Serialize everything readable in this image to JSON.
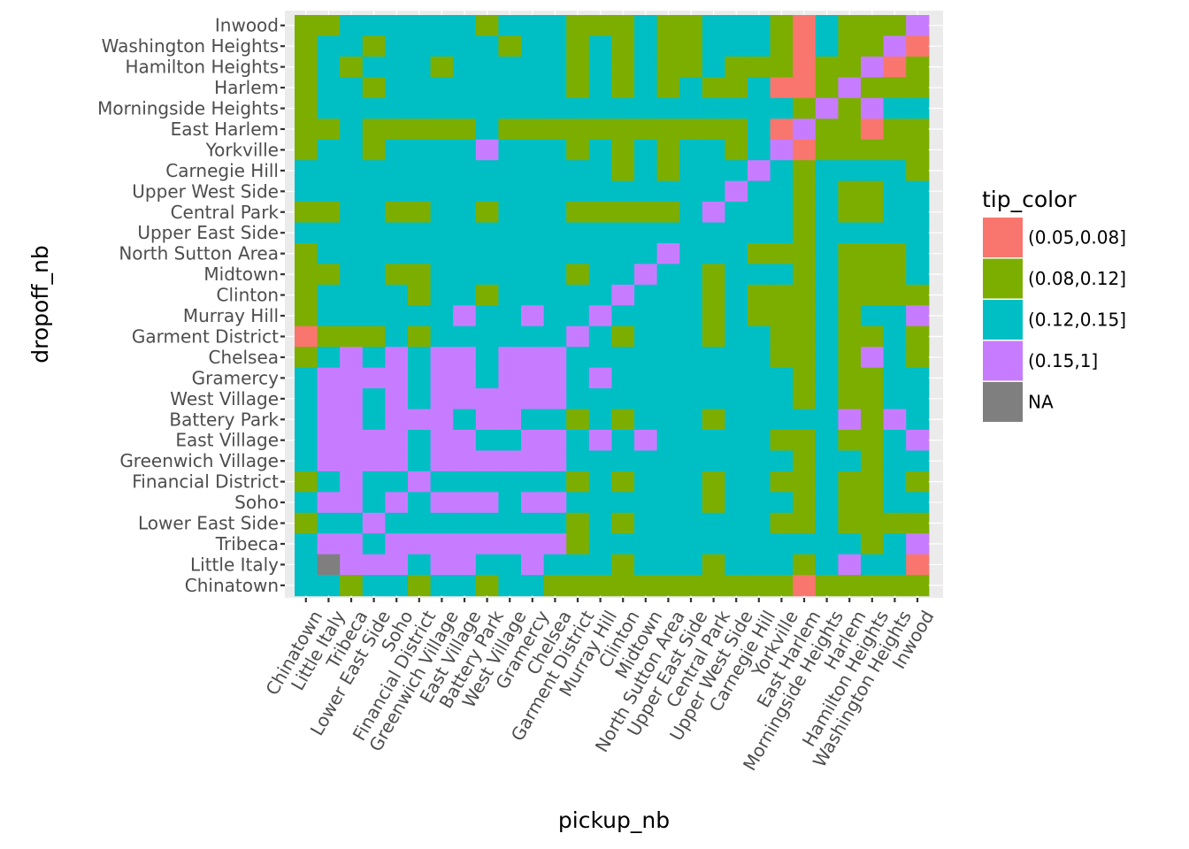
{
  "chart_data": {
    "type": "heatmap",
    "xlabel": "pickup_nb",
    "ylabel": "dropoff_nb",
    "x_categories": [
      "Chinatown",
      "Little Italy",
      "Tribeca",
      "Lower East Side",
      "Soho",
      "Financial District",
      "Greenwich Village",
      "East Village",
      "Battery Park",
      "West Village",
      "Gramercy",
      "Chelsea",
      "Garment District",
      "Murray Hill",
      "Clinton",
      "Midtown",
      "North Sutton Area",
      "Upper East Side",
      "Central Park",
      "Upper West Side",
      "Carnegie Hill",
      "Yorkville",
      "East Harlem",
      "Morningside Heights",
      "Harlem",
      "Hamilton Heights",
      "Washington Heights",
      "Inwood"
    ],
    "y_categories": [
      "Chinatown",
      "Little Italy",
      "Tribeca",
      "Lower East Side",
      "Soho",
      "Financial District",
      "Greenwich Village",
      "East Village",
      "Battery Park",
      "West Village",
      "Gramercy",
      "Chelsea",
      "Garment District",
      "Murray Hill",
      "Clinton",
      "Midtown",
      "North Sutton Area",
      "Upper East Side",
      "Central Park",
      "Upper West Side",
      "Carnegie Hill",
      "Yorkville",
      "East Harlem",
      "Morningside Heights",
      "Harlem",
      "Hamilton Heights",
      "Washington Heights",
      "Inwood"
    ],
    "legend": {
      "title": "tip_color",
      "placement": "right",
      "entries": [
        {
          "key": "A",
          "label": "(0.05,0.08]",
          "color": "#F8766D"
        },
        {
          "key": "B",
          "label": "(0.08,0.12]",
          "color": "#7CAE00"
        },
        {
          "key": "C",
          "label": "(0.12,0.15]",
          "color": "#00BFC4"
        },
        {
          "key": "D",
          "label": "(0.15,1]",
          "color": "#C77CFF"
        },
        {
          "key": "N",
          "label": "NA",
          "color": "#7F7F7F"
        }
      ]
    },
    "grid": true,
    "panel_background": "#EBEBEB",
    "rows_top_to_bottom": [
      {
        "dropoff": "Inwood",
        "cells": "BBCCCCCCBCCCBBBCBBCCCBACBBBD"
      },
      {
        "dropoff": "Washington Heights",
        "cells": "BCCBCCCCCBCCBCBCBBCCCBACBBDA"
      },
      {
        "dropoff": "Hamilton Heights",
        "cells": "BCBCCCBCCCCCBCBCBBCBBBABBDAB"
      },
      {
        "dropoff": "Harlem",
        "cells": "BCCBCCCCCCCCBCBCBCBBCAABDBBB"
      },
      {
        "dropoff": "Morningside Heights",
        "cells": "BCCCCCCCCCCCCCCCCCCCCCBDBDCC"
      },
      {
        "dropoff": "East Harlem",
        "cells": "BBCBBBBBCBBBBBBBBBBBCADBBABB"
      },
      {
        "dropoff": "Yorkville",
        "cells": "BCCBCCCCDCCCBCBCBCCBCDABBBBB"
      },
      {
        "dropoff": "Carnegie Hill",
        "cells": "CCCCCCCCCCCCCCBCBCCCDCBCCCCB"
      },
      {
        "dropoff": "Upper West Side",
        "cells": "CCCCCCCCCCCCCCCCCCCDCCBCBBCC"
      },
      {
        "dropoff": "Central Park",
        "cells": "BBCCBBCCBCCCBBBBBCDCCCBCBBCC"
      },
      {
        "dropoff": "Upper East Side",
        "cells": "CCCCCCCCCCCCCCCCCCCCCCBCCCCC"
      },
      {
        "dropoff": "North Sutton Area",
        "cells": "BCCCCCCCCCCCCCCCDCCCBBBCBBBC"
      },
      {
        "dropoff": "Midtown",
        "cells": "BBCCBBCCCCCCBCCDCCBCCCBCBBBC"
      },
      {
        "dropoff": "Clinton",
        "cells": "BCCCCBCCBCCCCCDCCCBCBBBCBBBB"
      },
      {
        "dropoff": "Murray Hill",
        "cells": "BCCCCCCDCCDCCDCCCCBCBBBCBCCD"
      },
      {
        "dropoff": "Garment District",
        "cells": "ABBBCBCCCCCCDCBCCCBCCBBCBBCB"
      },
      {
        "dropoff": "Chelsea",
        "cells": "BCDCDCDDCDDDCCCCCCCCCBBCBDCB"
      },
      {
        "dropoff": "Gramercy",
        "cells": "CDDDDCDDCDDDCDCCCCCCCCBCBBCC"
      },
      {
        "dropoff": "West Village",
        "cells": "CDDCDCDDDDDDCCCCCCCCCCBCBBCC"
      },
      {
        "dropoff": "Battery Park",
        "cells": "CDDCDDDCDDCCBCBCCCBCCCCCDBDC"
      },
      {
        "dropoff": "East Village",
        "cells": "CDDDDCDDCCDDCDCDCCCCCBBCBBCD"
      },
      {
        "dropoff": "Greenwich Village",
        "cells": "CDDDDCDDDDDDCCCCCCCCCCBCCBCC"
      },
      {
        "dropoff": "Financial District",
        "cells": "BCDCCDCCCCCCBCBCCCBCCBBCBBCB"
      },
      {
        "dropoff": "Soho",
        "cells": "CDDCDCDDDCDDCCCCCCBCCCBCBBCC"
      },
      {
        "dropoff": "Lower East Side",
        "cells": "BCCDCCCCCCCCBCBCCCCCCBBCBBBB"
      },
      {
        "dropoff": "Tribeca",
        "cells": "CDDCDDDDDDDDBCCCCCCCCCCCCBCD"
      },
      {
        "dropoff": "Little Italy",
        "cells": "CNDDDCDDCCDCCCBCCCBCCCBCDCCA"
      },
      {
        "dropoff": "Chinatown",
        "cells": "CCBCCBCCBCCBBBBBBBBBBBABBBBB"
      }
    ]
  }
}
